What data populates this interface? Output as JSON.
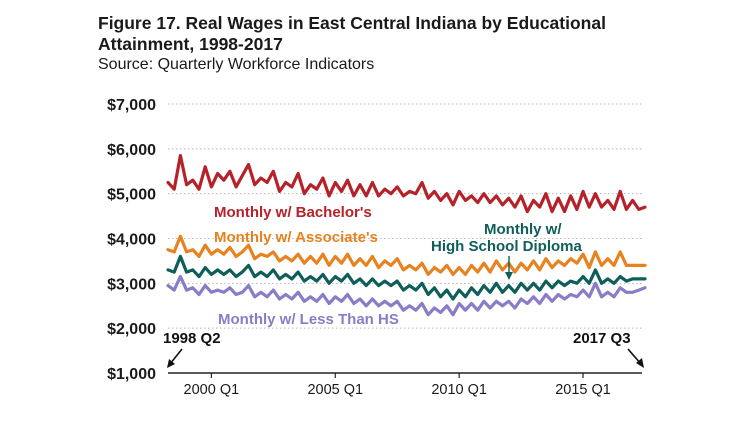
{
  "title_line1": "Figure 17. Real Wages in East Central Indiana by Educational",
  "title_line2": "Attainment, 1998-2017",
  "source": "Source: Quarterly Workforce Indicators",
  "chart_data": {
    "type": "line",
    "title": "Figure 17. Real Wages in East Central Indiana by Educational Attainment, 1998-2017",
    "xlabel": "",
    "ylabel": "",
    "ylim": [
      1000,
      7000
    ],
    "yticks": [
      "$1,000",
      "$2,000",
      "$3,000",
      "$4,000",
      "$5,000",
      "$6,000",
      "$7,000"
    ],
    "ytick_values": [
      1000,
      2000,
      3000,
      4000,
      5000,
      6000,
      7000
    ],
    "xticks": [
      "2000 Q1",
      "2005 Q1",
      "2010 Q1",
      "2015 Q1"
    ],
    "xtick_values": [
      2000,
      2005,
      2010,
      2015
    ],
    "xlim": [
      1998.25,
      2017.5
    ],
    "grid": "horizontal dotted",
    "legend": "inline labels",
    "annotations": {
      "start": "1998 Q2",
      "end": "2017 Q3"
    },
    "x": [
      "1998 Q2",
      "1998 Q3",
      "1998 Q4",
      "1999 Q1",
      "1999 Q2",
      "1999 Q3",
      "1999 Q4",
      "2000 Q1",
      "2000 Q2",
      "2000 Q3",
      "2000 Q4",
      "2001 Q1",
      "2001 Q2",
      "2001 Q3",
      "2001 Q4",
      "2002 Q1",
      "2002 Q2",
      "2002 Q3",
      "2002 Q4",
      "2003 Q1",
      "2003 Q2",
      "2003 Q3",
      "2003 Q4",
      "2004 Q1",
      "2004 Q2",
      "2004 Q3",
      "2004 Q4",
      "2005 Q1",
      "2005 Q2",
      "2005 Q3",
      "2005 Q4",
      "2006 Q1",
      "2006 Q2",
      "2006 Q3",
      "2006 Q4",
      "2007 Q1",
      "2007 Q2",
      "2007 Q3",
      "2007 Q4",
      "2008 Q1",
      "2008 Q2",
      "2008 Q3",
      "2008 Q4",
      "2009 Q1",
      "2009 Q2",
      "2009 Q3",
      "2009 Q4",
      "2010 Q1",
      "2010 Q2",
      "2010 Q3",
      "2010 Q4",
      "2011 Q1",
      "2011 Q2",
      "2011 Q3",
      "2011 Q4",
      "2012 Q1",
      "2012 Q2",
      "2012 Q3",
      "2012 Q4",
      "2013 Q1",
      "2013 Q2",
      "2013 Q3",
      "2013 Q4",
      "2014 Q1",
      "2014 Q2",
      "2014 Q3",
      "2014 Q4",
      "2015 Q1",
      "2015 Q2",
      "2015 Q3",
      "2015 Q4",
      "2016 Q1",
      "2016 Q2",
      "2016 Q3",
      "2016 Q4",
      "2017 Q1",
      "2017 Q2",
      "2017 Q3"
    ],
    "series": [
      {
        "name": "Monthly w/ Bachelor's",
        "color": "#b5222a",
        "values": [
          5250,
          5100,
          5850,
          5200,
          5300,
          5100,
          5600,
          5150,
          5450,
          5300,
          5500,
          5150,
          5400,
          5650,
          5200,
          5350,
          5250,
          5500,
          5050,
          5250,
          5150,
          5450,
          5000,
          5200,
          5100,
          5350,
          4950,
          5250,
          5050,
          5300,
          4950,
          5200,
          4950,
          5250,
          4950,
          5100,
          5000,
          5150,
          4950,
          5050,
          5000,
          5250,
          4900,
          5050,
          4850,
          5000,
          4750,
          5050,
          4850,
          4950,
          4800,
          5000,
          4800,
          4950,
          4750,
          4900,
          4700,
          4950,
          4600,
          4850,
          4700,
          5000,
          4600,
          4900,
          4600,
          4950,
          4650,
          5050,
          4700,
          5000,
          4700,
          4850,
          4650,
          5050,
          4650,
          4850,
          4650,
          4700
        ]
      },
      {
        "name": "Monthly w/ Associate's",
        "color": "#e8821e",
        "values": [
          3750,
          3700,
          4050,
          3700,
          3750,
          3600,
          3850,
          3650,
          3750,
          3650,
          3800,
          3600,
          3700,
          3850,
          3550,
          3650,
          3600,
          3700,
          3500,
          3600,
          3500,
          3650,
          3450,
          3600,
          3450,
          3650,
          3400,
          3600,
          3450,
          3650,
          3400,
          3550,
          3400,
          3600,
          3350,
          3500,
          3400,
          3550,
          3300,
          3400,
          3300,
          3450,
          3200,
          3350,
          3250,
          3400,
          3200,
          3350,
          3200,
          3400,
          3250,
          3450,
          3250,
          3500,
          3300,
          3450,
          3250,
          3450,
          3300,
          3500,
          3300,
          3550,
          3350,
          3500,
          3400,
          3550,
          3450,
          3650,
          3350,
          3700,
          3400,
          3550,
          3400,
          3700,
          3400,
          3400,
          3400,
          3400
        ]
      },
      {
        "name": "Monthly w/ High School Diploma",
        "color": "#0f5e5a",
        "values": [
          3300,
          3250,
          3600,
          3250,
          3300,
          3150,
          3350,
          3200,
          3300,
          3200,
          3300,
          3150,
          3250,
          3400,
          3150,
          3250,
          3150,
          3300,
          3100,
          3200,
          3100,
          3250,
          3050,
          3150,
          3050,
          3200,
          3000,
          3150,
          3050,
          3200,
          3000,
          3100,
          2950,
          3100,
          2950,
          3050,
          2950,
          3050,
          2850,
          2950,
          2850,
          3000,
          2750,
          2900,
          2700,
          2850,
          2650,
          2850,
          2700,
          2900,
          2750,
          2950,
          2800,
          3000,
          2800,
          2950,
          2800,
          3000,
          2850,
          3000,
          2850,
          3050,
          2900,
          3050,
          2950,
          3050,
          3000,
          3150,
          3000,
          3300,
          3000,
          3100,
          3000,
          3150,
          3050,
          3100,
          3100,
          3100
        ]
      },
      {
        "name": "Monthly w/ Less Than HS",
        "color": "#8a7cc7",
        "values": [
          2950,
          2850,
          3150,
          2850,
          2900,
          2750,
          2950,
          2800,
          2850,
          2800,
          2900,
          2750,
          2800,
          2950,
          2700,
          2800,
          2700,
          2850,
          2650,
          2750,
          2650,
          2800,
          2600,
          2700,
          2600,
          2750,
          2550,
          2700,
          2600,
          2750,
          2550,
          2650,
          2500,
          2650,
          2500,
          2600,
          2500,
          2600,
          2400,
          2500,
          2400,
          2550,
          2300,
          2450,
          2350,
          2500,
          2300,
          2550,
          2400,
          2550,
          2400,
          2600,
          2450,
          2600,
          2500,
          2600,
          2450,
          2650,
          2550,
          2700,
          2550,
          2750,
          2600,
          2750,
          2650,
          2750,
          2700,
          2850,
          2700,
          3000,
          2700,
          2800,
          2700,
          2900,
          2800,
          2800,
          2850,
          2900
        ]
      }
    ],
    "inline_labels": [
      "Monthly w/ Bachelor's",
      "Monthly w/ Associate's",
      "Monthly w/",
      "High School Diploma",
      "Monthly w/ Less Than HS"
    ]
  }
}
